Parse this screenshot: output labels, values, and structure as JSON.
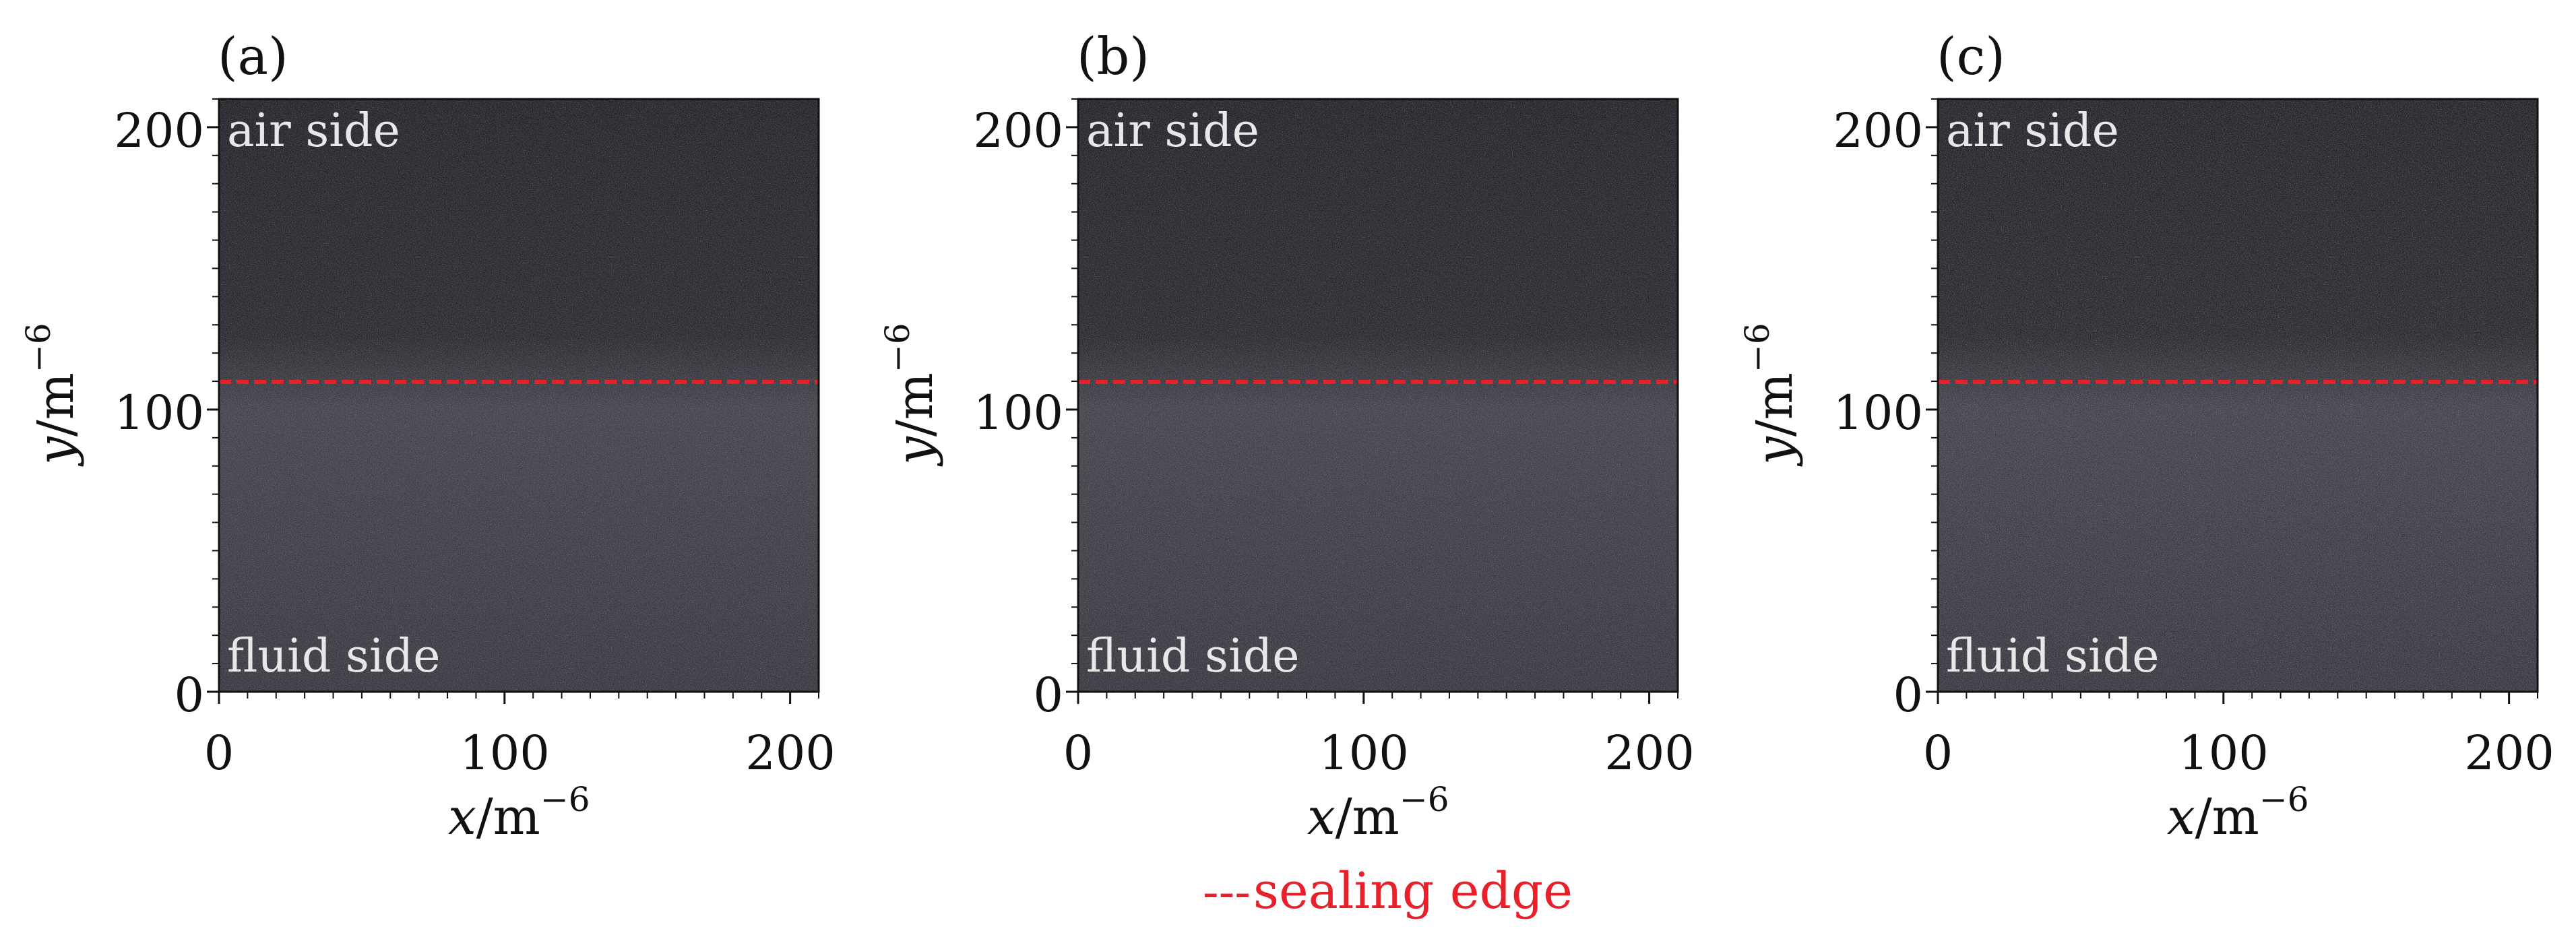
{
  "panels": [
    {
      "label": "(a)",
      "top_text": "air side",
      "bottom_text": "fluid side",
      "x_label_var": "x",
      "x_label_unit": "/m",
      "x_label_exp": "−6",
      "y_label_var": "y",
      "y_label_unit": "/m",
      "y_label_exp": "−6",
      "x_ticks": [
        "0",
        "100",
        "200"
      ],
      "y_ticks": [
        "0",
        "100",
        "200"
      ],
      "sealing_edge_y": 110
    },
    {
      "label": "(b)",
      "top_text": "air side",
      "bottom_text": "fluid side",
      "x_label_var": "x",
      "x_label_unit": "/m",
      "x_label_exp": "−6",
      "y_label_var": "y",
      "y_label_unit": "/m",
      "y_label_exp": "−6",
      "x_ticks": [
        "0",
        "100",
        "200"
      ],
      "y_ticks": [
        "0",
        "100",
        "200"
      ],
      "sealing_edge_y": 110
    },
    {
      "label": "(c)",
      "top_text": "air side",
      "bottom_text": "fluid side",
      "x_label_var": "x",
      "x_label_unit": "/m",
      "x_label_exp": "−6",
      "y_label_var": "y",
      "y_label_unit": "/m",
      "y_label_exp": "−6",
      "x_ticks": [
        "0",
        "100",
        "200"
      ],
      "y_ticks": [
        "0",
        "100",
        "200"
      ],
      "sealing_edge_y": 110
    }
  ],
  "axis_range": [
    0,
    210
  ],
  "legend": {
    "marker": "---",
    "label": "sealing edge"
  },
  "colors": {
    "sealing_edge": "#e8202a",
    "image_dark": "#2a2b30",
    "overlay_text": "#e8e8e8"
  }
}
